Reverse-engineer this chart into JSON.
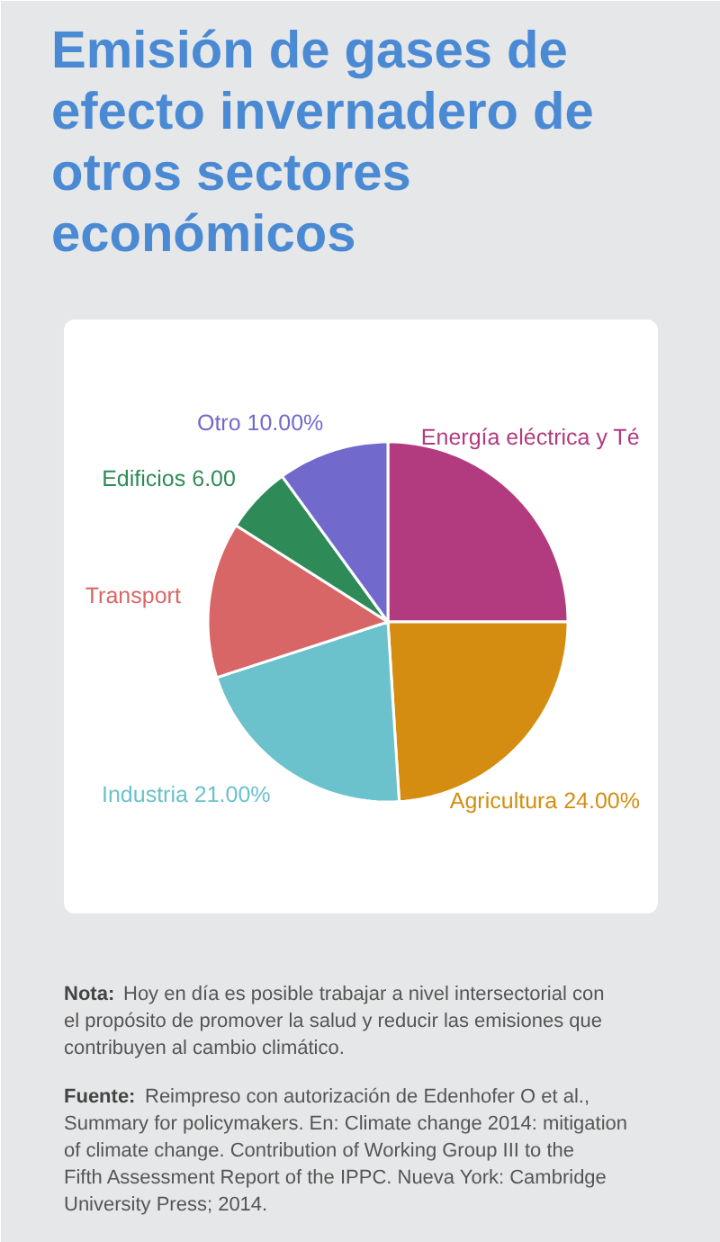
{
  "chart_data": {
    "type": "pie",
    "title": "Emisión de gases de efecto invernadero de otros sectores económicos",
    "categories": [
      "Energía eléctrica y Té",
      "Agricultura",
      "Industria",
      "Transport",
      "Edificios",
      "Otro"
    ],
    "values": [
      25,
      24,
      21,
      14,
      6,
      10
    ],
    "value_labels": [
      null,
      "24.00%",
      "21.00%",
      null,
      "6.00",
      "10.00%"
    ],
    "colors": [
      "#b23a7e",
      "#d48d10",
      "#6bc1cc",
      "#d96666",
      "#2e8b57",
      "#7269cc"
    ],
    "annotations": [
      "Nota: Hoy en día es posible trabajar a nivel intersectorial con el propósito de promover la salud y reducir las emisiones que contribuyen al cambio climático.",
      "Fuente: Reimpreso con autorización de Edenhofer O et al., Summary for policymakers. En: Climate change 2014: mitigation of climate change. Contribution of Working Group III to the Fifth Assessment Report of the IPPC. Nueva York: Cambridge University Press; 2014."
    ]
  }
}
